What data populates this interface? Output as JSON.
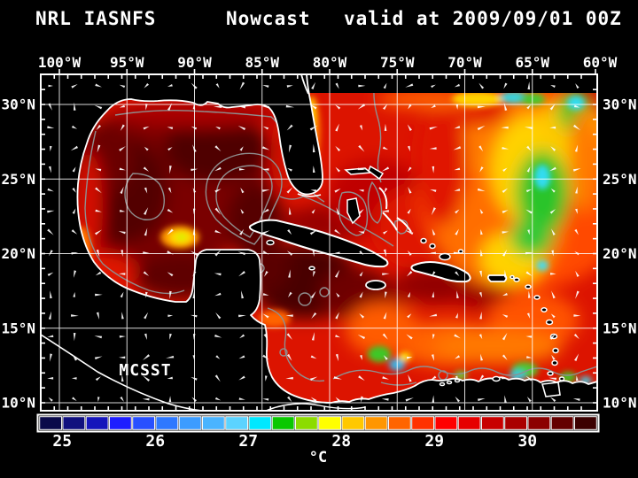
{
  "title": {
    "left": "NRL IASNFS",
    "center": "Nowcast",
    "right": "valid at 2009/09/01 00Z"
  },
  "axes": {
    "lon_labels": [
      "100°W",
      "95°W",
      "90°W",
      "85°W",
      "80°W",
      "75°W",
      "70°W",
      "65°W",
      "60°W"
    ],
    "lat_labels": [
      "30°N",
      "25°N",
      "20°N",
      "15°N",
      "10°N"
    ]
  },
  "map": {
    "watermark": "MCSST"
  },
  "colorbar": {
    "unit": "°C",
    "tick_labels": [
      "25",
      "26",
      "27",
      "28",
      "29",
      "30"
    ],
    "tick_values": [
      25,
      26,
      27,
      28,
      29,
      30
    ],
    "range_min": 24.75,
    "range_max": 30.75,
    "step": 0.25,
    "segment_colors": [
      "#0a0a4a",
      "#10107e",
      "#1616bb",
      "#1e1eff",
      "#2850ff",
      "#2e78ff",
      "#3c9cff",
      "#4ab4ff",
      "#5cd3ff",
      "#00e8ff",
      "#0ac800",
      "#8cdc00",
      "#ffff00",
      "#ffc800",
      "#ff9600",
      "#ff6400",
      "#ff3200",
      "#ff0000",
      "#e60000",
      "#c80000",
      "#aa0000",
      "#8c0000",
      "#640000",
      "#3c0000"
    ]
  },
  "colors": {
    "background": "#000000",
    "land": "#000000",
    "coastline": "#ffffff",
    "grid": "#ffffff",
    "contour": "#8f8f8f",
    "frame": "#ffffff",
    "sea_base": "#dc1400",
    "arrow": "#ffffff",
    "text": "#ffffff"
  }
}
